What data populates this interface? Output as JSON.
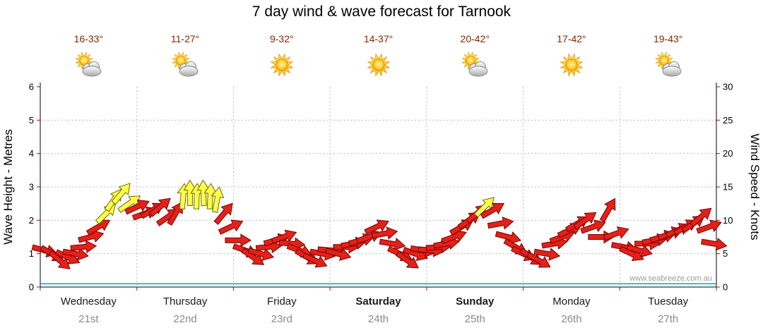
{
  "title": "7 day wind & wave forecast for Tarnook",
  "watermark": "www.seabreeze.com.au",
  "colors": {
    "arrow_red": "#e32119",
    "arrow_red_outline": "#7a0000",
    "arrow_yellow": "#ffff4c",
    "arrow_yellow_outline": "#6b6b00",
    "temp_text": "#8b2500",
    "grid": "#bcbcbc",
    "axis": "#000000",
    "tick": "#cc0000",
    "wave_line": "#00b7c9",
    "day_text": "#1a1a1a",
    "date_text": "#8a8a8a",
    "watermark_text": "#9a9a9a"
  },
  "axes": {
    "left_label": "Wave Height - Metres",
    "right_label": "Wind Speed - Knots",
    "left_ticks": [
      "0",
      "1",
      "2",
      "3",
      "4",
      "5",
      "6"
    ],
    "right_ticks": [
      "0",
      "5",
      "10",
      "15",
      "20",
      "25",
      "30"
    ]
  },
  "days": [
    {
      "name": "Wednesday",
      "date": "21st",
      "temp": "16-33°",
      "icon": "partly-cloudy",
      "bold": false
    },
    {
      "name": "Thursday",
      "date": "22nd",
      "temp": "11-27°",
      "icon": "partly-cloudy",
      "bold": false
    },
    {
      "name": "Friday",
      "date": "23rd",
      "temp": "9-32°",
      "icon": "sunny",
      "bold": false
    },
    {
      "name": "Saturday",
      "date": "24th",
      "temp": "14-37°",
      "icon": "sunny",
      "bold": true
    },
    {
      "name": "Sunday",
      "date": "25th",
      "temp": "20-42°",
      "icon": "partly-cloudy",
      "bold": true
    },
    {
      "name": "Monday",
      "date": "26th",
      "temp": "17-42°",
      "icon": "sunny",
      "bold": false
    },
    {
      "name": "Tuesday",
      "date": "27th",
      "temp": "19-43°",
      "icon": "partly-cloudy",
      "bold": false
    }
  ],
  "chart_data": {
    "type": "wind-arrows",
    "title": "7 day wind & wave forecast for Tarnook",
    "x_axis": "7 days, Wednesday 21st to Tuesday 27th",
    "wind_speed_axis_range": [
      0,
      30
    ],
    "wave_height_axis_range": [
      0,
      6
    ],
    "wave_height_m": 0.1,
    "legend": "arrow color: red = normal wind, yellow = stronger afternoon breeze; arrow angle = wind direction; height on axis = wind speed in knots",
    "wind_points": [
      [
        0.04,
        5.5,
        15,
        "r"
      ],
      [
        0.12,
        5,
        30,
        "r"
      ],
      [
        0.2,
        4,
        40,
        "r"
      ],
      [
        0.28,
        4.5,
        25,
        "r"
      ],
      [
        0.36,
        5,
        10,
        "r"
      ],
      [
        0.44,
        6,
        -5,
        "r"
      ],
      [
        0.52,
        7.5,
        -15,
        "r"
      ],
      [
        0.6,
        9,
        -30,
        "r"
      ],
      [
        0.68,
        11,
        -45,
        "y"
      ],
      [
        0.76,
        13,
        -55,
        "y"
      ],
      [
        0.84,
        14,
        -50,
        "y"
      ],
      [
        0.92,
        12.5,
        -35,
        "y"
      ],
      [
        1.0,
        12,
        -25,
        "r"
      ],
      [
        1.08,
        11,
        -20,
        "r"
      ],
      [
        1.16,
        11.5,
        -30,
        "r"
      ],
      [
        1.24,
        12,
        -40,
        "r"
      ],
      [
        1.32,
        10.5,
        -35,
        "r"
      ],
      [
        1.4,
        11,
        -60,
        "r"
      ],
      [
        1.48,
        13.5,
        -85,
        "y"
      ],
      [
        1.55,
        14,
        -90,
        "y"
      ],
      [
        1.62,
        13.5,
        -88,
        "y"
      ],
      [
        1.69,
        14,
        -92,
        "y"
      ],
      [
        1.76,
        13.5,
        -87,
        "y"
      ],
      [
        1.83,
        13,
        -80,
        "y"
      ],
      [
        1.9,
        11,
        -50,
        "r"
      ],
      [
        1.97,
        9,
        -25,
        "r"
      ],
      [
        2.04,
        7,
        0,
        "r"
      ],
      [
        2.12,
        5.5,
        20,
        "r"
      ],
      [
        2.2,
        4.5,
        35,
        "r"
      ],
      [
        2.28,
        5,
        15,
        "r"
      ],
      [
        2.36,
        6,
        -5,
        "r"
      ],
      [
        2.44,
        7,
        -15,
        "r"
      ],
      [
        2.52,
        7.5,
        -20,
        "r"
      ],
      [
        2.6,
        6.5,
        5,
        "r"
      ],
      [
        2.68,
        5.5,
        20,
        "r"
      ],
      [
        2.76,
        4.5,
        30,
        "r"
      ],
      [
        2.84,
        4,
        25,
        "r"
      ],
      [
        2.92,
        5,
        10,
        "r"
      ],
      [
        3.0,
        5.5,
        5,
        "r"
      ],
      [
        3.08,
        5,
        15,
        "r"
      ],
      [
        3.16,
        6,
        0,
        "r"
      ],
      [
        3.24,
        6.5,
        -10,
        "r"
      ],
      [
        3.32,
        7,
        -15,
        "r"
      ],
      [
        3.4,
        7.5,
        -20,
        "r"
      ],
      [
        3.48,
        9,
        -25,
        "r"
      ],
      [
        3.56,
        8,
        -10,
        "r"
      ],
      [
        3.64,
        6.5,
        10,
        "r"
      ],
      [
        3.72,
        5,
        25,
        "r"
      ],
      [
        3.8,
        4,
        35,
        "r"
      ],
      [
        3.88,
        5,
        20,
        "r"
      ],
      [
        3.96,
        5.5,
        10,
        "r"
      ],
      [
        4.04,
        5.5,
        5,
        "r"
      ],
      [
        4.12,
        6,
        -5,
        "r"
      ],
      [
        4.2,
        6.5,
        -10,
        "r"
      ],
      [
        4.28,
        7.5,
        -20,
        "r"
      ],
      [
        4.36,
        9,
        -30,
        "r"
      ],
      [
        4.44,
        10,
        -35,
        "r"
      ],
      [
        4.52,
        11,
        -40,
        "r"
      ],
      [
        4.6,
        12,
        -45,
        "y"
      ],
      [
        4.68,
        11.5,
        -30,
        "r"
      ],
      [
        4.76,
        9.5,
        -10,
        "r"
      ],
      [
        4.84,
        7.5,
        15,
        "r"
      ],
      [
        4.92,
        6,
        30,
        "r"
      ],
      [
        5.0,
        5,
        25,
        "r"
      ],
      [
        5.08,
        4.5,
        35,
        "r"
      ],
      [
        5.16,
        4,
        30,
        "r"
      ],
      [
        5.24,
        5,
        10,
        "r"
      ],
      [
        5.32,
        6.5,
        -10,
        "r"
      ],
      [
        5.4,
        7.5,
        -20,
        "r"
      ],
      [
        5.48,
        8.5,
        -25,
        "r"
      ],
      [
        5.56,
        9.5,
        -30,
        "r"
      ],
      [
        5.64,
        10,
        -35,
        "r"
      ],
      [
        5.72,
        9,
        -20,
        "r"
      ],
      [
        5.8,
        7.5,
        0,
        "r"
      ],
      [
        5.88,
        11.5,
        -60,
        "r"
      ],
      [
        5.96,
        8,
        -20,
        "r"
      ],
      [
        6.04,
        6,
        10,
        "r"
      ],
      [
        6.12,
        5,
        25,
        "r"
      ],
      [
        6.2,
        5.5,
        15,
        "r"
      ],
      [
        6.28,
        6.5,
        0,
        "r"
      ],
      [
        6.36,
        7,
        -10,
        "r"
      ],
      [
        6.44,
        7.5,
        -15,
        "r"
      ],
      [
        6.52,
        8,
        -20,
        "r"
      ],
      [
        6.6,
        8.5,
        -25,
        "r"
      ],
      [
        6.68,
        9,
        -30,
        "r"
      ],
      [
        6.76,
        9.5,
        -35,
        "r"
      ],
      [
        6.84,
        10.5,
        -40,
        "r"
      ],
      [
        6.92,
        9,
        -20,
        "r"
      ],
      [
        6.97,
        6.5,
        10,
        "r"
      ]
    ]
  }
}
